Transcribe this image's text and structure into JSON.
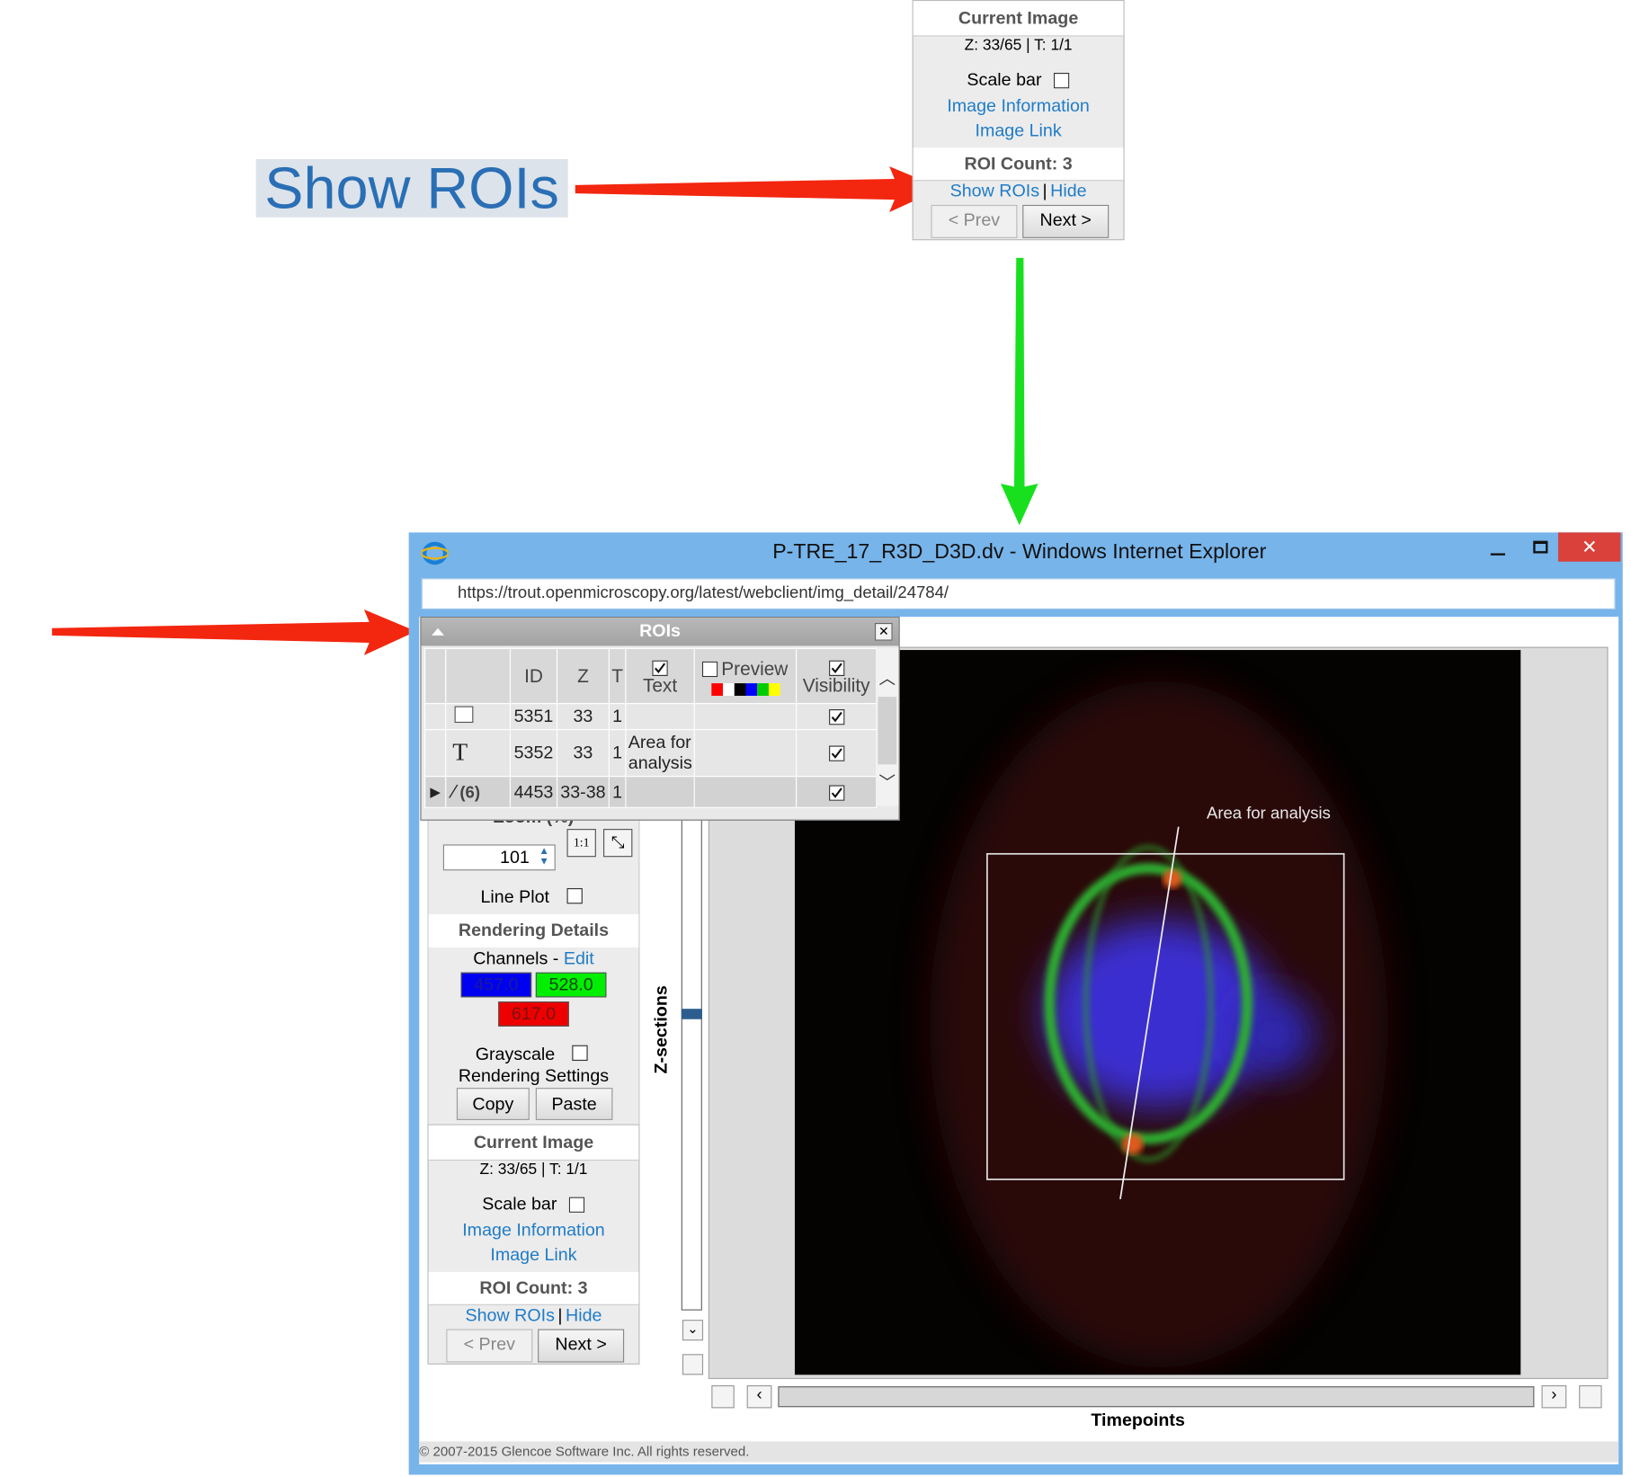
{
  "callout": {
    "label": "Show ROIs"
  },
  "image_panel": {
    "header": "Current Image",
    "z_t": "Z: 33/65 | T: 1/1",
    "scale_bar": "Scale bar",
    "image_information": "Image Information",
    "image_link": "Image Link",
    "roi_count": "ROI Count: 3",
    "show_rois": "Show ROIs",
    "separator": "|",
    "hide": "Hide",
    "prev": "< Prev",
    "next": "Next >"
  },
  "window": {
    "title": "P-TRE_17_R3D_D3D.dv - Windows Internet Explorer",
    "url": "https://trout.openmicroscopy.org/latest/webclient/img_detail/24784/",
    "footer": "© 2007-2015 Glencoe Software Inc. All rights reserved."
  },
  "sidebar": {
    "zoom_label": "Zoom (%)",
    "zoom_value": "101",
    "one_to_one": "1:1",
    "line_plot": "Line Plot",
    "rendering_details": "Rendering Details",
    "channels": "Channels -",
    "edit": "Edit",
    "channel_values": [
      "457.0",
      "528.0",
      "617.0"
    ],
    "grayscale": "Grayscale",
    "rendering_settings": "Rendering Settings",
    "copy": "Copy",
    "paste": "Paste"
  },
  "viewer": {
    "z_sections": "Z-sections",
    "timepoints": "Timepoints",
    "annotation": "Area for analysis"
  },
  "roi_dialog": {
    "title": "ROIs",
    "columns": [
      "ID",
      "Z",
      "T",
      "Text",
      "Preview",
      "Visibility"
    ],
    "rows": [
      {
        "id": "5351",
        "z": "33",
        "t": "1"
      },
      {
        "icon": "T",
        "id": "5352",
        "z": "33",
        "t": "1",
        "text": "Area for analysis"
      },
      {
        "count": "(6)",
        "id": "4453",
        "z": "33-38",
        "t": "1"
      }
    ]
  }
}
